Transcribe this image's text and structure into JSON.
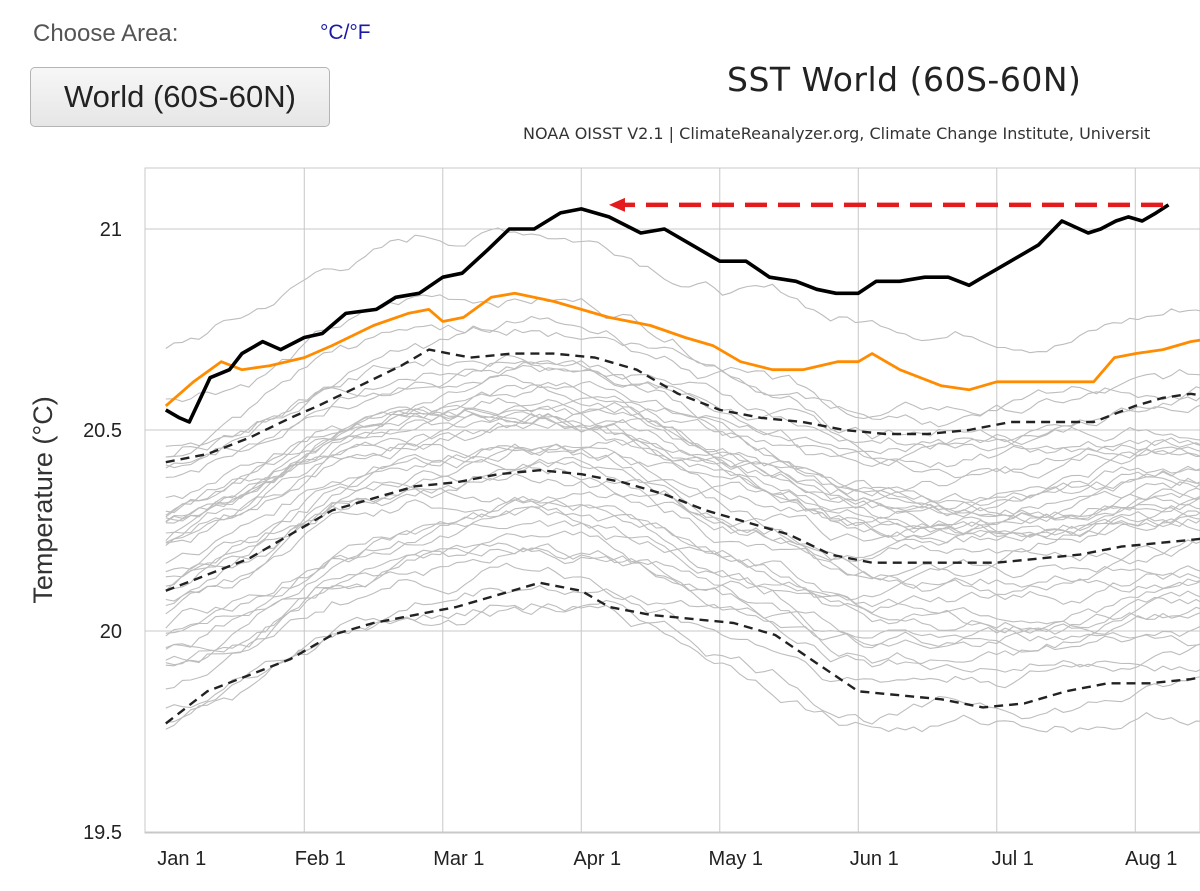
{
  "header": {
    "choose_area_label": "Choose Area:",
    "unit_toggle": "°C/°F",
    "area_button": "World (60S-60N)"
  },
  "chart_data": {
    "type": "line",
    "title": "SST World (60S-60N)",
    "subtitle": "NOAA OISST V2.1 | ClimateReanalyzer.org, Climate Change Institute, Universit",
    "xlabel": "",
    "ylabel": "Temperature (°C)",
    "ylim": [
      19.5,
      21.15
    ],
    "xlim": [
      -0.15,
      7.88
    ],
    "yticks": [
      19.5,
      20,
      20.5,
      21
    ],
    "ytick_labels": [
      "19.5",
      "20",
      "20.5",
      "21"
    ],
    "xticks": [
      0,
      1,
      2,
      3,
      4,
      5,
      6,
      7
    ],
    "xtick_labels": [
      "Jan 1",
      "Feb 1",
      "Mar 1",
      "Apr 1",
      "May 1",
      "Jun 1",
      "Jul 1",
      "Aug 1"
    ],
    "grid": true,
    "colors": {
      "current_year": "#000000",
      "previous_year": "#ff8c00",
      "stat_lines": "#222222",
      "history": "#bdbdbd",
      "annotation": "#e41a1c"
    },
    "series": [
      {
        "role": "current-year",
        "x": [
          0,
          0.1,
          0.17,
          0.32,
          0.46,
          0.55,
          0.7,
          0.83,
          1.0,
          1.13,
          1.3,
          1.52,
          1.66,
          1.83,
          2.0,
          2.14,
          2.33,
          2.48,
          2.66,
          2.85,
          3.0,
          3.2,
          3.43,
          3.6,
          3.8,
          4.0,
          4.19,
          4.36,
          4.55,
          4.7,
          4.84,
          5.0,
          5.13,
          5.3,
          5.48,
          5.65,
          5.8,
          5.9,
          6.0,
          6.1,
          6.3,
          6.47,
          6.66,
          6.75,
          6.86,
          6.95,
          7.05,
          7.15,
          7.24
        ],
        "y": [
          20.55,
          20.53,
          20.52,
          20.63,
          20.65,
          20.69,
          20.72,
          20.7,
          20.73,
          20.74,
          20.79,
          20.8,
          20.83,
          20.84,
          20.88,
          20.89,
          20.95,
          21.0,
          21.0,
          21.04,
          21.05,
          21.03,
          20.99,
          21.0,
          20.96,
          20.92,
          20.92,
          20.88,
          20.87,
          20.85,
          20.84,
          20.84,
          20.87,
          20.87,
          20.88,
          20.88,
          20.86,
          20.88,
          20.9,
          20.92,
          20.96,
          21.02,
          20.99,
          21.0,
          21.02,
          21.03,
          21.02,
          21.04,
          21.06
        ]
      },
      {
        "role": "previous-year",
        "x": [
          0,
          0.2,
          0.4,
          0.55,
          0.75,
          1.0,
          1.2,
          1.5,
          1.75,
          1.9,
          2.0,
          2.15,
          2.35,
          2.52,
          2.8,
          3.0,
          3.2,
          3.5,
          3.75,
          3.95,
          4.15,
          4.38,
          4.6,
          4.85,
          5.0,
          5.1,
          5.3,
          5.6,
          5.8,
          6.0,
          6.2,
          6.45,
          6.7,
          6.85,
          7.0,
          7.2,
          7.4,
          7.6,
          7.88
        ],
        "y": [
          20.56,
          20.62,
          20.67,
          20.65,
          20.66,
          20.68,
          20.71,
          20.76,
          20.79,
          20.8,
          20.77,
          20.78,
          20.83,
          20.84,
          20.82,
          20.8,
          20.78,
          20.76,
          20.73,
          20.71,
          20.67,
          20.65,
          20.65,
          20.67,
          20.67,
          20.69,
          20.65,
          20.61,
          20.6,
          20.62,
          20.62,
          20.62,
          20.62,
          20.68,
          20.69,
          20.7,
          20.72,
          20.73,
          20.73
        ]
      },
      {
        "role": "stat-upper",
        "x": [
          0,
          0.3,
          0.6,
          0.9,
          1.1,
          1.4,
          1.7,
          1.9,
          2.2,
          2.5,
          2.8,
          3.1,
          3.4,
          3.7,
          4.0,
          4.3,
          4.6,
          4.9,
          5.2,
          5.5,
          5.8,
          6.1,
          6.4,
          6.7,
          7.0,
          7.2,
          7.4,
          7.6,
          7.88
        ],
        "y": [
          20.42,
          20.44,
          20.48,
          20.53,
          20.56,
          20.61,
          20.66,
          20.7,
          20.68,
          20.69,
          20.69,
          20.68,
          20.65,
          20.59,
          20.55,
          20.53,
          20.52,
          20.5,
          20.49,
          20.49,
          20.5,
          20.52,
          20.52,
          20.52,
          20.56,
          20.58,
          20.59,
          20.58,
          20.56
        ]
      },
      {
        "role": "stat-mean",
        "x": [
          0,
          0.3,
          0.6,
          0.9,
          1.2,
          1.5,
          1.8,
          2.1,
          2.4,
          2.7,
          3.0,
          3.3,
          3.6,
          3.9,
          4.2,
          4.5,
          4.8,
          5.1,
          5.4,
          5.7,
          6.0,
          6.3,
          6.6,
          6.9,
          7.2,
          7.5,
          7.88
        ],
        "y": [
          20.1,
          20.14,
          20.18,
          20.24,
          20.3,
          20.33,
          20.36,
          20.37,
          20.39,
          20.4,
          20.39,
          20.37,
          20.34,
          20.3,
          20.27,
          20.24,
          20.19,
          20.17,
          20.17,
          20.17,
          20.17,
          20.18,
          20.19,
          20.21,
          20.22,
          20.23,
          20.24
        ]
      },
      {
        "role": "stat-lower",
        "x": [
          0,
          0.3,
          0.6,
          0.9,
          1.2,
          1.5,
          1.8,
          2.1,
          2.4,
          2.7,
          3.0,
          3.2,
          3.5,
          3.8,
          4.1,
          4.4,
          4.7,
          5.0,
          5.3,
          5.6,
          5.9,
          6.2,
          6.5,
          6.8,
          7.1,
          7.4,
          7.7,
          7.88
        ],
        "y": [
          19.77,
          19.85,
          19.89,
          19.93,
          19.99,
          20.02,
          20.04,
          20.06,
          20.09,
          20.12,
          20.1,
          20.06,
          20.04,
          20.03,
          20.02,
          19.99,
          19.92,
          19.85,
          19.84,
          19.83,
          19.81,
          19.82,
          19.85,
          19.87,
          19.87,
          19.88,
          19.9,
          19.91
        ]
      }
    ],
    "annotations": [
      {
        "type": "dashed-arrow",
        "x_from": 7.2,
        "x_to": 3.2,
        "y": 21.06
      }
    ]
  }
}
